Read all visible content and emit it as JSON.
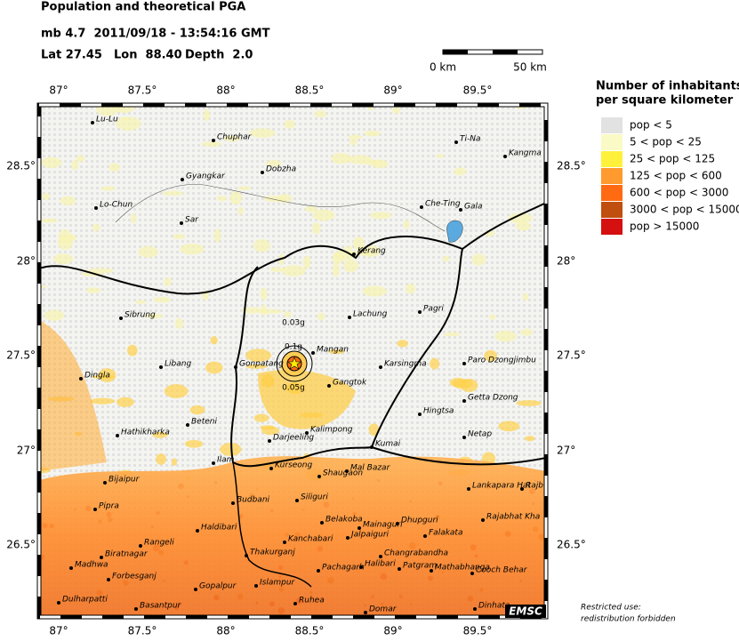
{
  "header": {
    "title": "Population and theoretical PGA",
    "event": "mb 4.7  2011/09/18 - 13:54:16 GMT",
    "lat": "Lat 27.45",
    "lon": "Lon  88.40",
    "depth": "Depth  2.0"
  },
  "scale_bar": {
    "start": "0 km",
    "end": "50 km"
  },
  "legend": {
    "title": [
      "Number of inhabitants",
      "per square kilometer"
    ],
    "items": [
      {
        "label": "pop < 5",
        "color": "#e2e2e2"
      },
      {
        "label": "5 < pop < 25",
        "color": "#fafac6"
      },
      {
        "label": "25 < pop < 125",
        "color": "#fff03c"
      },
      {
        "label": "125 < pop < 600",
        "color": "#ff9a2e"
      },
      {
        "label": "600 < pop < 3000",
        "color": "#ff6a12"
      },
      {
        "label": "3000 < pop < 15000",
        "color": "#c04e0e"
      },
      {
        "label": "pop > 15000",
        "color": "#d41010"
      }
    ]
  },
  "lon_ticks": [
    "87°",
    "87.5°",
    "88°",
    "88.5°",
    "89°",
    "89.5°"
  ],
  "lat_ticks": [
    "28.5°",
    "28°",
    "27.5°",
    "27°",
    "26.5°"
  ],
  "pga_labels": [
    "0.03g",
    "0.1g",
    "0.05g"
  ],
  "places": [
    "Lu-Lu",
    "Chuphar",
    "Dobzha",
    "Gyangkar",
    "Lo-Chun",
    "Sar",
    "Ti-Na",
    "Kangma",
    "Che-Ting",
    "Gala",
    "Kerang",
    "Pagri",
    "Sibrung",
    "Lachung",
    "Mangan",
    "Libang",
    "Gonpatang",
    "Karsingma",
    "Paro Dzongjimbu",
    "Dingla",
    "Gangtok",
    "Getta Dzong",
    "Hingtsa",
    "Beteni",
    "Kalimpong",
    "Hathikharka",
    "Netap",
    "Kumai",
    "Darjeeling",
    "Ilam",
    "Kurseong",
    "Mal Bazar",
    "Shaugaon",
    "Bijaipur",
    "Lankapara Hat",
    "Rajbu",
    "Budbani",
    "Siliguri",
    "Pipra",
    "Rajabhat Kha",
    "Belakoba",
    "Mainaguri",
    "Dhupguri",
    "Haldibari",
    "Jalpaiguri",
    "Falakata",
    "Rangeli",
    "Kanchabari",
    "Biratnagar",
    "Thakurganj",
    "Changrabandha",
    "Madhwa",
    "Forbesganj",
    "Pachagarh",
    "Halibari",
    "Patgram",
    "Mathabhanga",
    "Cooch Behar",
    "Gopalpur",
    "Islampur",
    "Dulharpatti",
    "Basantpur",
    "Ruhea",
    "Domar",
    "Dinhata"
  ],
  "footer": {
    "notice": [
      "Restricted use:",
      "redistribution forbidden"
    ],
    "logo": "EMSC"
  }
}
